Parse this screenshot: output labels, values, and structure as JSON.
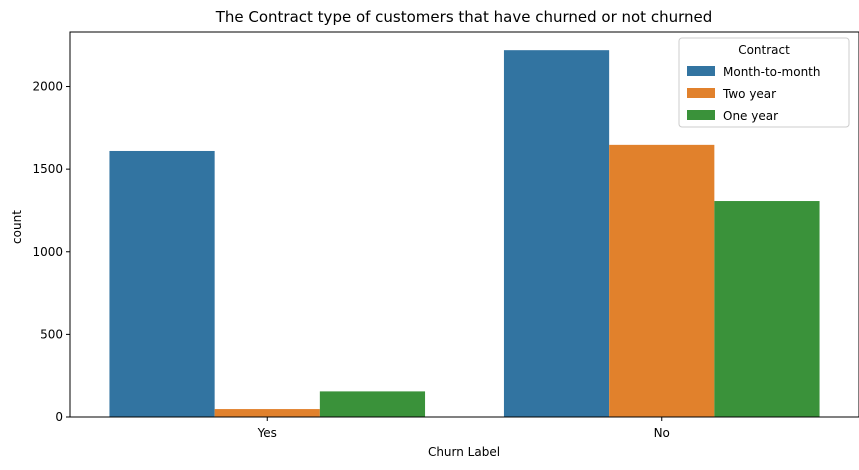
{
  "chart_data": {
    "type": "bar",
    "title": "The Contract type of customers that have churned or not churned",
    "xlabel": "Churn Label",
    "ylabel": "count",
    "categories": [
      "Yes",
      "No"
    ],
    "series": [
      {
        "name": "Month-to-month",
        "color": "#3274a1",
        "values": [
          1610,
          2220
        ]
      },
      {
        "name": "Two year",
        "color": "#e1812c",
        "values": [
          48,
          1647
        ]
      },
      {
        "name": "One year",
        "color": "#3a923a",
        "values": [
          155,
          1307
        ]
      }
    ],
    "ylim": [
      0,
      2330
    ],
    "yticks": [
      0,
      500,
      1000,
      1500,
      2000
    ],
    "grid": false,
    "legend": {
      "title": "Contract",
      "placement": "top-right"
    }
  }
}
